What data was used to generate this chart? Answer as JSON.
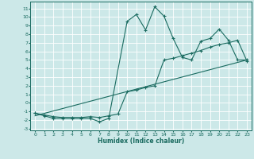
{
  "xlabel": "Humidex (Indice chaleur)",
  "xlim": [
    -0.5,
    23.5
  ],
  "ylim": [
    -3.2,
    11.8
  ],
  "yticks": [
    -3,
    -2,
    -1,
    0,
    1,
    2,
    3,
    4,
    5,
    6,
    7,
    8,
    9,
    10,
    11
  ],
  "xticks": [
    0,
    1,
    2,
    3,
    4,
    5,
    6,
    7,
    8,
    9,
    10,
    11,
    12,
    13,
    14,
    15,
    16,
    17,
    18,
    19,
    20,
    21,
    22,
    23
  ],
  "bg_color": "#cce8e8",
  "line_color": "#1a6b60",
  "grid_color": "#ffffff",
  "line1_x": [
    0,
    1,
    2,
    3,
    4,
    5,
    6,
    7,
    8,
    10,
    11,
    12,
    13,
    14,
    15,
    16,
    17,
    18,
    19,
    20,
    21,
    22,
    23
  ],
  "line1_y": [
    -1.2,
    -1.5,
    -1.8,
    -1.8,
    -1.8,
    -1.8,
    -1.8,
    -2.2,
    -1.8,
    9.5,
    10.3,
    8.5,
    11.2,
    10.1,
    7.5,
    5.3,
    5.0,
    7.2,
    7.5,
    8.6,
    7.3,
    5.0,
    5.0
  ],
  "line2_x": [
    0,
    1,
    2,
    3,
    4,
    5,
    6,
    7,
    8,
    9,
    10,
    11,
    12,
    13,
    14,
    15,
    16,
    17,
    18,
    19,
    20,
    21,
    22,
    23
  ],
  "line2_y": [
    -1.2,
    -1.4,
    -1.6,
    -1.7,
    -1.7,
    -1.7,
    -1.6,
    -1.7,
    -1.5,
    -1.3,
    1.3,
    1.5,
    1.8,
    2.0,
    5.0,
    5.2,
    5.5,
    5.8,
    6.1,
    6.5,
    6.8,
    7.0,
    7.3,
    4.9
  ],
  "line3_x": [
    0,
    23
  ],
  "line3_y": [
    -1.5,
    5.0
  ]
}
